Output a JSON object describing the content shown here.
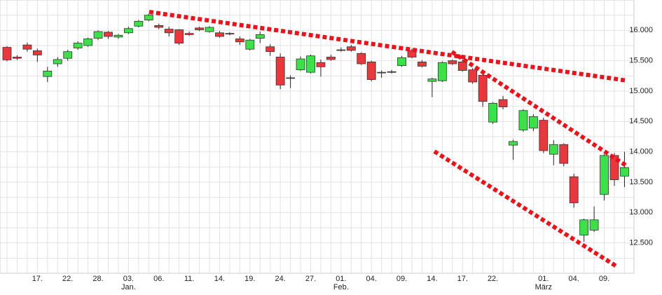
{
  "chart_data": {
    "type": "candlestick",
    "categories": [
      null,
      null,
      null,
      "17.",
      null,
      null,
      "22.",
      null,
      null,
      "28.",
      null,
      null,
      "03.",
      null,
      null,
      "06.",
      null,
      null,
      "11.",
      null,
      null,
      "14.",
      null,
      null,
      "19.",
      null,
      null,
      "24.",
      null,
      null,
      "27.",
      null,
      null,
      "01.",
      null,
      null,
      "04.",
      null,
      null,
      "09.",
      null,
      null,
      "14.",
      null,
      null,
      "17.",
      null,
      null,
      "22.",
      null,
      null,
      null,
      null,
      "01.",
      null,
      null,
      "04.",
      null,
      null,
      "09.",
      null,
      null
    ],
    "month_labels": [
      null,
      null,
      null,
      null,
      null,
      null,
      null,
      null,
      null,
      null,
      null,
      null,
      "Jan.",
      null,
      null,
      null,
      null,
      null,
      null,
      null,
      null,
      null,
      null,
      null,
      null,
      null,
      null,
      null,
      null,
      null,
      null,
      null,
      null,
      "Feb.",
      null,
      null,
      null,
      null,
      null,
      null,
      null,
      null,
      null,
      null,
      null,
      null,
      null,
      null,
      null,
      null,
      null,
      null,
      null,
      "März",
      null,
      null,
      null,
      null,
      null,
      null,
      null,
      null
    ],
    "open": [
      15720,
      15560,
      15760,
      15665,
      15240,
      15450,
      15540,
      15710,
      15750,
      15870,
      15970,
      15890,
      15960,
      16070,
      16170,
      16080,
      16020,
      16010,
      15950,
      16040,
      15980,
      15960,
      15950,
      15860,
      15690,
      15870,
      15730,
      15560,
      15220,
      15350,
      15310,
      15470,
      15560,
      15680,
      15730,
      15620,
      15480,
      15310,
      15320,
      15420,
      15670,
      15480,
      15160,
      15170,
      15500,
      15480,
      15350,
      15260,
      14490,
      14860,
      14110,
      14360,
      14390,
      14520,
      13960,
      14120,
      13590,
      12630,
      12710,
      13300,
      13940,
      13600
    ],
    "high": [
      15740,
      15590,
      15800,
      15700,
      15400,
      15560,
      15680,
      15820,
      15880,
      16000,
      15990,
      15940,
      16060,
      16170,
      16270,
      16110,
      16060,
      16020,
      15980,
      16060,
      16070,
      15990,
      15970,
      15900,
      15860,
      15980,
      15770,
      15620,
      15260,
      15570,
      15600,
      15520,
      15600,
      15720,
      15760,
      15640,
      15500,
      15340,
      15350,
      15580,
      15700,
      15510,
      15220,
      15490,
      15520,
      15520,
      15380,
      15290,
      14820,
      14920,
      14200,
      14700,
      14620,
      14560,
      14190,
      14140,
      13640,
      12900,
      13100,
      13960,
      13980,
      14000
    ],
    "low": [
      15490,
      15510,
      15650,
      15480,
      15150,
      15400,
      15500,
      15680,
      15730,
      15840,
      15860,
      15860,
      15940,
      16050,
      16150,
      16020,
      15900,
      15760,
      15910,
      15990,
      15960,
      15880,
      15920,
      15760,
      15670,
      15790,
      15580,
      15030,
      15050,
      15330,
      15290,
      15240,
      15500,
      15650,
      15650,
      15430,
      15160,
      15220,
      15290,
      15400,
      15540,
      15390,
      14900,
      15150,
      15430,
      15320,
      15120,
      14740,
      14460,
      14700,
      13870,
      14330,
      14340,
      13980,
      13780,
      13760,
      13080,
      12520,
      12680,
      13200,
      13440,
      13420
    ],
    "close": [
      15515,
      15540,
      15690,
      15595,
      15330,
      15520,
      15650,
      15790,
      15860,
      15980,
      15900,
      15920,
      16030,
      16150,
      16250,
      16050,
      15960,
      15790,
      15930,
      16010,
      16050,
      15900,
      15940,
      15810,
      15840,
      15930,
      15650,
      15100,
      15210,
      15530,
      15580,
      15400,
      15520,
      15670,
      15670,
      15450,
      15190,
      15300,
      15310,
      15550,
      15560,
      15410,
      15200,
      15470,
      15450,
      15340,
      15150,
      14830,
      14800,
      14740,
      14170,
      14680,
      14580,
      14020,
      14120,
      13810,
      13160,
      12880,
      12880,
      13940,
      13540,
      13740
    ],
    "up_color": "#3ee04a",
    "down_color": "#e8383c",
    "ylim": [
      12000,
      16500
    ],
    "yticks": [
      {
        "value": 12500,
        "label": "12.500"
      },
      {
        "value": 13000,
        "label": "13.000"
      },
      {
        "value": 13500,
        "label": "13.500"
      },
      {
        "value": 14000,
        "label": "14.000"
      },
      {
        "value": 14500,
        "label": "14.500"
      },
      {
        "value": 15000,
        "label": "15.000"
      },
      {
        "value": 15500,
        "label": "15.500"
      },
      {
        "value": 16000,
        "label": "16.000"
      }
    ],
    "minor_yticks": [
      12250,
      12750,
      13250,
      13750,
      14250,
      14750,
      15250,
      15750,
      16250
    ],
    "grid": true
  }
}
